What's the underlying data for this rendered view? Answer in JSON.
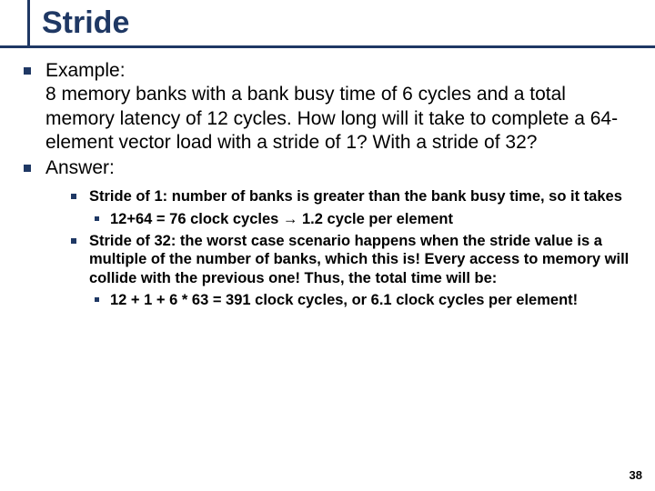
{
  "title": "Stride",
  "bullets": {
    "example_label": "Example:",
    "example_body": "8 memory banks with a bank busy time of 6 cycles and a total memory latency of 12 cycles. How long will it take to complete a 64-element vector load with a stride of 1? With a stride of 32?",
    "answer_label": "Answer:",
    "ans1": "Stride of 1: number of banks is greater than the bank busy time, so it takes",
    "ans1_sub": "12+64 = 76 clock cycles → 1.2 cycle per element",
    "ans2": "Stride of 32: the worst case scenario happens when the stride value is a multiple of the number of banks, which this is! Every access to memory will collide with the previous one! Thus, the total time will be:",
    "ans2_sub": "12 + 1 + 6 * 63 = 391 clock cycles, or 6.1 clock cycles per element!"
  },
  "page_number": "38",
  "colors": {
    "accent": "#1f3864",
    "text": "#000000",
    "background": "#ffffff"
  }
}
